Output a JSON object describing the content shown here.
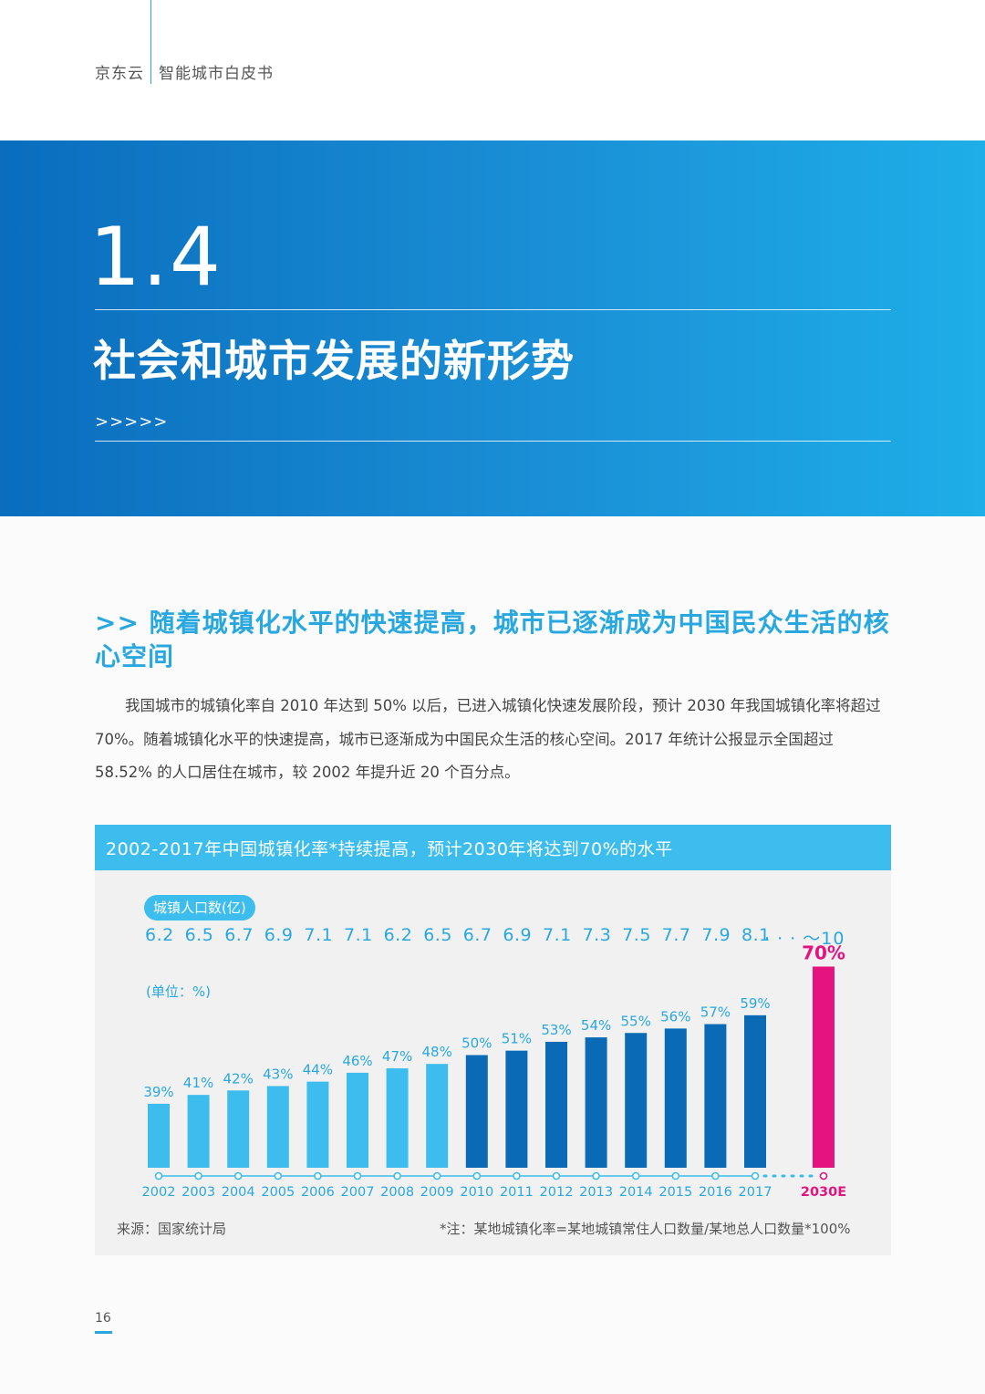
{
  "header": {
    "brand": "京东云",
    "doc_title": "智能城市白皮书"
  },
  "section": {
    "number": "1.4",
    "title": "社会和城市发展的新形势",
    "arrows": ">>>>>"
  },
  "subheading": ">> 随着城镇化水平的快速提高，城市已逐渐成为中国民众生活的核心空间",
  "body": "我国城市的城镇化率自 2010 年达到 50% 以后，已进入城镇化快速发展阶段，预计 2030 年我国城镇化率将超过 70%。随着城镇化水平的快速提高，城市已逐渐成为中国民众生活的核心空间。2017 年统计公报显示全国超过 58.52% 的人口居住在城市，较 2002 年提升近 20 个百分点。",
  "chart_data": {
    "type": "bar",
    "title": "2002-2017年中国城镇化率*持续提高，预计2030年将达到70%的水平",
    "population_label": "城镇人口数(亿)",
    "population": [
      "6.2",
      "6.5",
      "6.7",
      "6.9",
      "7.1",
      "7.1",
      "6.2",
      "6.5",
      "6.7",
      "6.9",
      "7.1",
      "7.3",
      "7.5",
      "7.7",
      "7.9",
      "8.1"
    ],
    "population_tail": "· · · ～10",
    "unit_label": "(单位：%)",
    "categories": [
      "2002",
      "2003",
      "2004",
      "2005",
      "2006",
      "2007",
      "2008",
      "2009",
      "2010",
      "2011",
      "2012",
      "2013",
      "2014",
      "2015",
      "2016",
      "2017",
      "2030E"
    ],
    "values": [
      39,
      41,
      42,
      43,
      44,
      46,
      47,
      48,
      50,
      51,
      53,
      54,
      55,
      56,
      57,
      59,
      70
    ],
    "value_labels": [
      "39%",
      "41%",
      "42%",
      "43%",
      "44%",
      "46%",
      "47%",
      "48%",
      "50%",
      "51%",
      "53%",
      "54%",
      "55%",
      "56%",
      "57%",
      "59%",
      "70%"
    ],
    "colors": {
      "early": "#3cbdee",
      "recent": "#0b6ab5",
      "forecast": "#e4137f"
    },
    "source": "来源：国家统计局",
    "note": "*注：某地城镇化率=某地城镇常住人口数量/某地总人口数量*100%"
  },
  "page_number": "16"
}
